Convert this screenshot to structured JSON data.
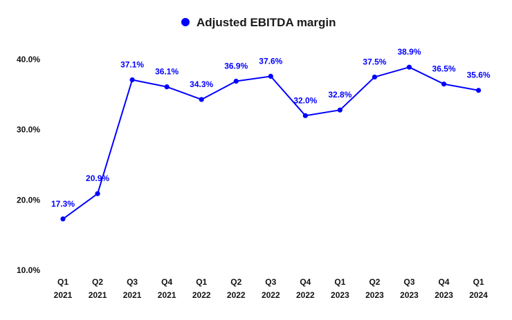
{
  "chart_data": {
    "type": "line",
    "title": "",
    "xlabel": "",
    "ylabel": "",
    "categories": [
      [
        "Q1",
        "2021"
      ],
      [
        "Q2",
        "2021"
      ],
      [
        "Q3",
        "2021"
      ],
      [
        "Q4",
        "2021"
      ],
      [
        "Q1",
        "2022"
      ],
      [
        "Q2",
        "2022"
      ],
      [
        "Q3",
        "2022"
      ],
      [
        "Q4",
        "2022"
      ],
      [
        "Q1",
        "2023"
      ],
      [
        "Q2",
        "2023"
      ],
      [
        "Q3",
        "2023"
      ],
      [
        "Q4",
        "2023"
      ],
      [
        "Q1",
        "2024"
      ]
    ],
    "series": [
      {
        "name": "Adjusted EBITDA margin",
        "color": "#0000ff",
        "values": [
          17.3,
          20.9,
          37.1,
          36.1,
          34.3,
          36.9,
          37.6,
          32.0,
          32.8,
          37.5,
          38.9,
          36.5,
          35.6
        ],
        "data_labels": [
          "17.3%",
          "20.9%",
          "37.1%",
          "36.1%",
          "34.3%",
          "36.9%",
          "37.6%",
          "32.0%",
          "32.8%",
          "37.5%",
          "38.9%",
          "36.5%",
          "35.6%"
        ]
      }
    ],
    "yticks": [
      10,
      20,
      30,
      40
    ],
    "ytick_labels": [
      "10.0%",
      "20.0%",
      "30.0%",
      "40.0%"
    ],
    "ylim": [
      10,
      40
    ],
    "grid": false,
    "legend_position": "top-center"
  }
}
